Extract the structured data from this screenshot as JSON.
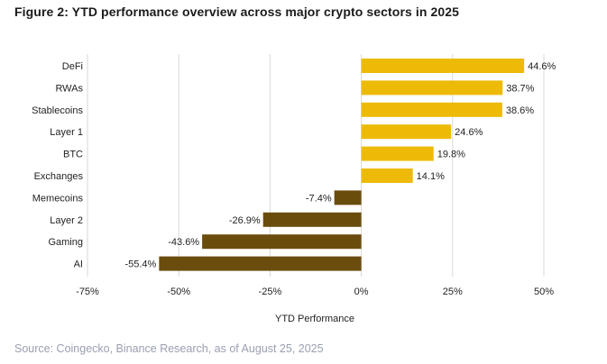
{
  "title": "Figure 2: YTD performance overview across major crypto sectors in 2025",
  "source": "Source: Coingecko, Binance Research, as of August 25, 2025",
  "colors": {
    "positive": "#EDBA08",
    "negative": "#6A4D0C",
    "grid": "#d9d9d9",
    "text": "#1f1f1f"
  },
  "chart_data": {
    "type": "bar",
    "orientation": "horizontal",
    "categories": [
      "DeFi",
      "RWAs",
      "Stablecoins",
      "Layer 1",
      "BTC",
      "Exchanges",
      "Memecoins",
      "Layer 2",
      "Gaming",
      "AI"
    ],
    "values": [
      44.6,
      38.7,
      38.6,
      24.6,
      19.8,
      14.1,
      -7.4,
      -26.9,
      -43.6,
      -55.4
    ],
    "value_labels": [
      "44.6%",
      "38.7%",
      "38.6%",
      "24.6%",
      "19.8%",
      "14.1%",
      "-7.4%",
      "-26.9%",
      "-43.6%",
      "-55.4%"
    ],
    "xlabel": "YTD Performance",
    "ylabel": "",
    "xlim": [
      -75,
      50
    ],
    "xticks": [
      -75,
      -50,
      -25,
      0,
      25,
      50
    ],
    "xtick_labels": [
      "-75%",
      "-50%",
      "-25%",
      "0%",
      "25%",
      "50%"
    ],
    "grid": "vertical",
    "legend": "none"
  }
}
